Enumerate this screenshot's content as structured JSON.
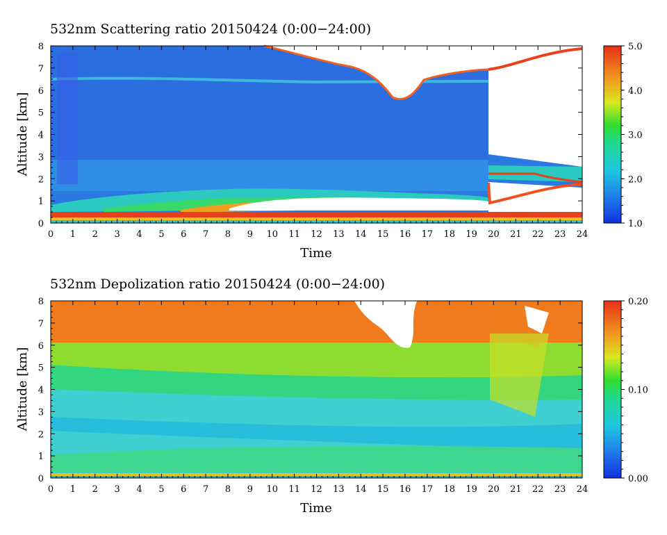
{
  "chart_data": [
    {
      "type": "heatmap",
      "title": "532nm Scattering ratio  20150424 (0:00−24:00)",
      "xlabel": "Time",
      "ylabel": "Altitude [km]",
      "xlim": [
        0,
        24
      ],
      "ylim": [
        0,
        8
      ],
      "xticks": [
        "0",
        "1",
        "2",
        "3",
        "4",
        "5",
        "6",
        "7",
        "8",
        "9",
        "10",
        "11",
        "12",
        "13",
        "14",
        "15",
        "16",
        "17",
        "18",
        "19",
        "20",
        "21",
        "22",
        "23",
        "24"
      ],
      "yticks": [
        "0",
        "1",
        "2",
        "3",
        "4",
        "5",
        "6",
        "7",
        "8"
      ],
      "colorbar": {
        "min": 1.0,
        "max": 5.0,
        "ticks": [
          "1.0",
          "2.0",
          "3.0",
          "4.0",
          "5.0"
        ]
      },
      "colors": {
        "low": "#1f3fd9",
        "mid": "#22c7d9",
        "high": "#e8321a"
      }
    },
    {
      "type": "heatmap",
      "title": "532nm Depolization ratio  20150424 (0:00−24:00)",
      "xlabel": "Time",
      "ylabel": "Altitude [km]",
      "xlim": [
        0,
        24
      ],
      "ylim": [
        0,
        8
      ],
      "xticks": [
        "0",
        "1",
        "2",
        "3",
        "4",
        "5",
        "6",
        "7",
        "8",
        "9",
        "10",
        "11",
        "12",
        "13",
        "14",
        "15",
        "16",
        "17",
        "18",
        "19",
        "20",
        "21",
        "22",
        "23",
        "24"
      ],
      "yticks": [
        "0",
        "1",
        "2",
        "3",
        "4",
        "5",
        "6",
        "7",
        "8"
      ],
      "colorbar": {
        "min": 0.0,
        "max": 0.2,
        "ticks": [
          "0.00",
          "0.10",
          "0.20"
        ]
      },
      "colors": {
        "low": "#1f3fd9",
        "mid": "#3fd93f",
        "high": "#e8321a"
      }
    }
  ]
}
